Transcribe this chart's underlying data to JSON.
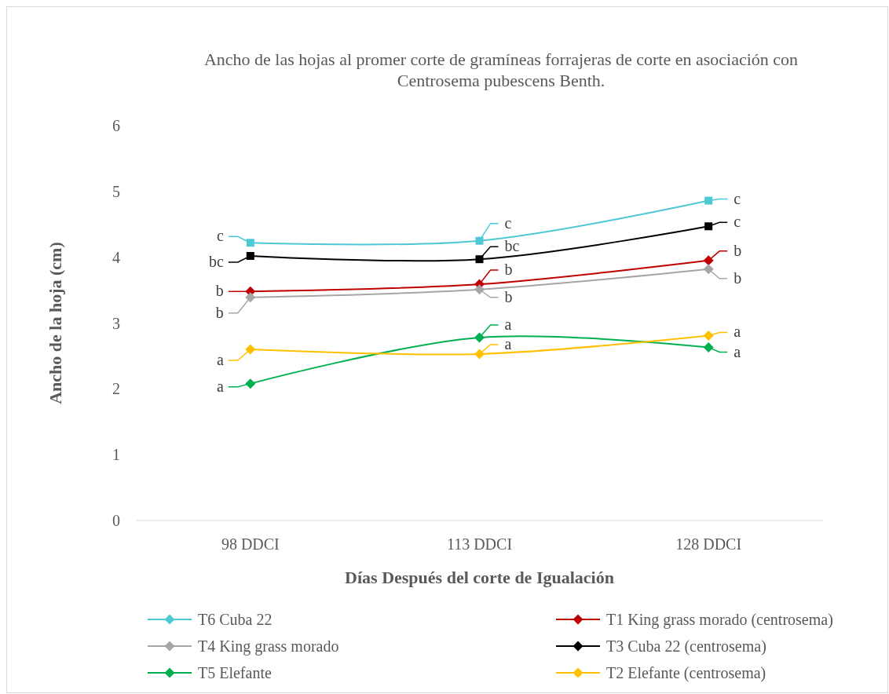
{
  "chart_data": {
    "type": "line",
    "title": "Ancho de las hojas al promer corte de gramíneas forrajeras de corte en asociación con Centrosema pubescens Benth.",
    "xlabel": "Días Después del corte de Igualación",
    "ylabel": "Ancho de la hoja (cm)",
    "categories": [
      "98 DDCI",
      "113 DDCI",
      "128 DDCI"
    ],
    "ylim": [
      0,
      6
    ],
    "yticks": [
      0,
      1,
      2,
      3,
      4,
      5,
      6
    ],
    "grid": false,
    "legend": "bottom",
    "series": [
      {
        "name": "T6 Cuba 22",
        "color": "#4dc9d6",
        "marker": "square",
        "values": [
          4.22,
          4.25,
          4.86
        ]
      },
      {
        "name": "T1  King grass morado  (centrosema)",
        "color": "#c00000",
        "marker": "diamond",
        "values": [
          3.48,
          3.59,
          3.95
        ]
      },
      {
        "name": "T4 King grass morado",
        "color": "#a6a6a6",
        "marker": "diamond",
        "values": [
          3.39,
          3.51,
          3.82
        ]
      },
      {
        "name": "T3 Cuba 22  (centrosema)",
        "color": "#000000",
        "marker": "square",
        "values": [
          4.02,
          3.97,
          4.47
        ]
      },
      {
        "name": "T5 Elefante",
        "color": "#00b050",
        "marker": "diamond",
        "values": [
          2.08,
          2.78,
          2.63
        ]
      },
      {
        "name": "T2 Elefante (centrosema)",
        "color": "#ffc000",
        "marker": "diamond",
        "values": [
          2.6,
          2.53,
          2.81
        ]
      }
    ],
    "annotations": [
      {
        "text": "c",
        "x": "98 DDCI",
        "y": 4.22
      },
      {
        "text": "c",
        "x": "113 DDCI",
        "y": 4.25
      },
      {
        "text": "c",
        "x": "128 DDCI",
        "y": 4.86
      },
      {
        "text": "b",
        "x": "98 DDCI",
        "y": 3.48
      },
      {
        "text": "b",
        "x": "113 DDCI",
        "y": 3.59
      },
      {
        "text": "b",
        "x": "128 DDCI",
        "y": 3.95
      },
      {
        "text": "b",
        "x": "98 DDCI",
        "y": 3.39
      },
      {
        "text": "b",
        "x": "113 DDCI",
        "y": 3.51
      },
      {
        "text": "b",
        "x": "128 DDCI",
        "y": 3.82
      },
      {
        "text": "bc",
        "x": "98 DDCI",
        "y": 4.02
      },
      {
        "text": "bc",
        "x": "113 DDCI",
        "y": 3.97
      },
      {
        "text": "c",
        "x": "128 DDCI",
        "y": 4.47
      },
      {
        "text": "a",
        "x": "98 DDCI",
        "y": 2.08
      },
      {
        "text": "a",
        "x": "113 DDCI",
        "y": 2.78
      },
      {
        "text": "a",
        "x": "128 DDCI",
        "y": 2.63
      },
      {
        "text": "a",
        "x": "98 DDCI",
        "y": 2.6
      },
      {
        "text": "a",
        "x": "113 DDCI",
        "y": 2.53
      },
      {
        "text": "a",
        "x": "128 DDCI",
        "y": 2.81
      }
    ]
  }
}
